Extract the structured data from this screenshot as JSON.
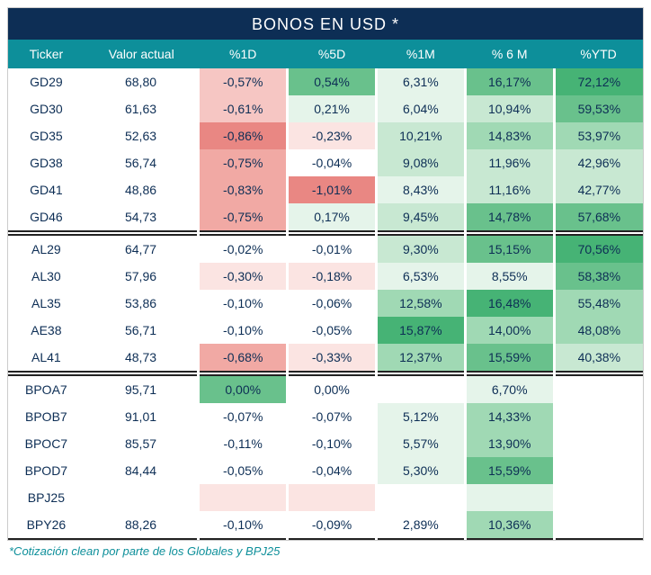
{
  "title": "BONOS EN USD *",
  "footnote": "*Cotización clean por parte de los Globales y BPJ25",
  "colors": {
    "title_bg": "#0d2e55",
    "header_bg": "#0d8f9a",
    "text": "#0d2e55",
    "footnote": "#0d8f9a",
    "neg4": "#e98783",
    "neg3": "#f1a9a4",
    "neg2": "#f6c6c3",
    "neg1": "#fbe4e2",
    "neu": "#ffffff",
    "pos1": "#e5f4ea",
    "pos2": "#c8e8d2",
    "pos3": "#a0d9b4",
    "pos4": "#69c18c",
    "pos5": "#46b375"
  },
  "columns": [
    "Ticker",
    "Valor actual",
    "%1D",
    "%5D",
    "%1M",
    "% 6 M",
    "%YTD"
  ],
  "groups": [
    {
      "rows": [
        {
          "ticker": "GD29",
          "value": "68,80",
          "d1": {
            "t": "-0,57%",
            "c": "neg2"
          },
          "d5": {
            "t": "0,54%",
            "c": "pos4"
          },
          "m1": {
            "t": "6,31%",
            "c": "pos1"
          },
          "m6": {
            "t": "16,17%",
            "c": "pos4"
          },
          "ytd": {
            "t": "72,12%",
            "c": "pos5"
          }
        },
        {
          "ticker": "GD30",
          "value": "61,63",
          "d1": {
            "t": "-0,61%",
            "c": "neg2"
          },
          "d5": {
            "t": "0,21%",
            "c": "pos1"
          },
          "m1": {
            "t": "6,04%",
            "c": "pos1"
          },
          "m6": {
            "t": "10,94%",
            "c": "pos2"
          },
          "ytd": {
            "t": "59,53%",
            "c": "pos4"
          }
        },
        {
          "ticker": "GD35",
          "value": "52,63",
          "d1": {
            "t": "-0,86%",
            "c": "neg4"
          },
          "d5": {
            "t": "-0,23%",
            "c": "neg1"
          },
          "m1": {
            "t": "10,21%",
            "c": "pos2"
          },
          "m6": {
            "t": "14,83%",
            "c": "pos3"
          },
          "ytd": {
            "t": "53,97%",
            "c": "pos3"
          }
        },
        {
          "ticker": "GD38",
          "value": "56,74",
          "d1": {
            "t": "-0,75%",
            "c": "neg3"
          },
          "d5": {
            "t": "-0,04%",
            "c": "neu"
          },
          "m1": {
            "t": "9,08%",
            "c": "pos2"
          },
          "m6": {
            "t": "11,96%",
            "c": "pos2"
          },
          "ytd": {
            "t": "42,96%",
            "c": "pos2"
          }
        },
        {
          "ticker": "GD41",
          "value": "48,86",
          "d1": {
            "t": "-0,83%",
            "c": "neg3"
          },
          "d5": {
            "t": "-1,01%",
            "c": "neg4"
          },
          "m1": {
            "t": "8,43%",
            "c": "pos1"
          },
          "m6": {
            "t": "11,16%",
            "c": "pos2"
          },
          "ytd": {
            "t": "42,77%",
            "c": "pos2"
          }
        },
        {
          "ticker": "GD46",
          "value": "54,73",
          "d1": {
            "t": "-0,75%",
            "c": "neg3"
          },
          "d5": {
            "t": "0,17%",
            "c": "pos1"
          },
          "m1": {
            "t": "9,45%",
            "c": "pos2"
          },
          "m6": {
            "t": "14,78%",
            "c": "pos4"
          },
          "ytd": {
            "t": "57,68%",
            "c": "pos4"
          }
        }
      ]
    },
    {
      "rows": [
        {
          "ticker": "AL29",
          "value": "64,77",
          "d1": {
            "t": "-0,02%",
            "c": "neu"
          },
          "d5": {
            "t": "-0,01%",
            "c": "neu"
          },
          "m1": {
            "t": "9,30%",
            "c": "pos2"
          },
          "m6": {
            "t": "15,15%",
            "c": "pos4"
          },
          "ytd": {
            "t": "70,56%",
            "c": "pos5"
          }
        },
        {
          "ticker": "AL30",
          "value": "57,96",
          "d1": {
            "t": "-0,30%",
            "c": "neg1"
          },
          "d5": {
            "t": "-0,18%",
            "c": "neg1"
          },
          "m1": {
            "t": "6,53%",
            "c": "pos1"
          },
          "m6": {
            "t": "8,55%",
            "c": "pos1"
          },
          "ytd": {
            "t": "58,38%",
            "c": "pos4"
          }
        },
        {
          "ticker": "AL35",
          "value": "53,86",
          "d1": {
            "t": "-0,10%",
            "c": "neu"
          },
          "d5": {
            "t": "-0,06%",
            "c": "neu"
          },
          "m1": {
            "t": "12,58%",
            "c": "pos3"
          },
          "m6": {
            "t": "16,48%",
            "c": "pos5"
          },
          "ytd": {
            "t": "55,48%",
            "c": "pos3"
          }
        },
        {
          "ticker": "AE38",
          "value": "56,71",
          "d1": {
            "t": "-0,10%",
            "c": "neu"
          },
          "d5": {
            "t": "-0,05%",
            "c": "neu"
          },
          "m1": {
            "t": "15,87%",
            "c": "pos5"
          },
          "m6": {
            "t": "14,00%",
            "c": "pos3"
          },
          "ytd": {
            "t": "48,08%",
            "c": "pos3"
          }
        },
        {
          "ticker": "AL41",
          "value": "48,73",
          "d1": {
            "t": "-0,68%",
            "c": "neg3"
          },
          "d5": {
            "t": "-0,33%",
            "c": "neg1"
          },
          "m1": {
            "t": "12,37%",
            "c": "pos3"
          },
          "m6": {
            "t": "15,59%",
            "c": "pos4"
          },
          "ytd": {
            "t": "40,38%",
            "c": "pos2"
          }
        }
      ]
    },
    {
      "rows": [
        {
          "ticker": "BPOA7",
          "value": "95,71",
          "d1": {
            "t": "0,00%",
            "c": "pos4"
          },
          "d5": {
            "t": "0,00%",
            "c": "neu"
          },
          "m1": {
            "t": "",
            "c": "neu"
          },
          "m6": {
            "t": "6,70%",
            "c": "pos1"
          },
          "ytd": {
            "t": "",
            "c": "neu"
          }
        },
        {
          "ticker": "BPOB7",
          "value": "91,01",
          "d1": {
            "t": "-0,07%",
            "c": "neu"
          },
          "d5": {
            "t": "-0,07%",
            "c": "neu"
          },
          "m1": {
            "t": "5,12%",
            "c": "pos1"
          },
          "m6": {
            "t": "14,33%",
            "c": "pos3"
          },
          "ytd": {
            "t": "",
            "c": "neu"
          }
        },
        {
          "ticker": "BPOC7",
          "value": "85,57",
          "d1": {
            "t": "-0,11%",
            "c": "neu"
          },
          "d5": {
            "t": "-0,10%",
            "c": "neu"
          },
          "m1": {
            "t": "5,57%",
            "c": "pos1"
          },
          "m6": {
            "t": "13,90%",
            "c": "pos3"
          },
          "ytd": {
            "t": "",
            "c": "neu"
          }
        },
        {
          "ticker": "BPOD7",
          "value": "84,44",
          "d1": {
            "t": "-0,05%",
            "c": "neu"
          },
          "d5": {
            "t": "-0,04%",
            "c": "neu"
          },
          "m1": {
            "t": "5,30%",
            "c": "pos1"
          },
          "m6": {
            "t": "15,59%",
            "c": "pos4"
          },
          "ytd": {
            "t": "",
            "c": "neu"
          }
        },
        {
          "ticker": "BPJ25",
          "value": "",
          "d1": {
            "t": "",
            "c": "neg1"
          },
          "d5": {
            "t": "",
            "c": "neg1"
          },
          "m1": {
            "t": "",
            "c": "neu"
          },
          "m6": {
            "t": "",
            "c": "pos1"
          },
          "ytd": {
            "t": "",
            "c": "neu"
          }
        },
        {
          "ticker": "BPY26",
          "value": "88,26",
          "d1": {
            "t": "-0,10%",
            "c": "neu"
          },
          "d5": {
            "t": "-0,09%",
            "c": "neu"
          },
          "m1": {
            "t": "2,89%",
            "c": "neu"
          },
          "m6": {
            "t": "10,36%",
            "c": "pos3"
          },
          "ytd": {
            "t": "",
            "c": "neu"
          }
        }
      ]
    }
  ]
}
